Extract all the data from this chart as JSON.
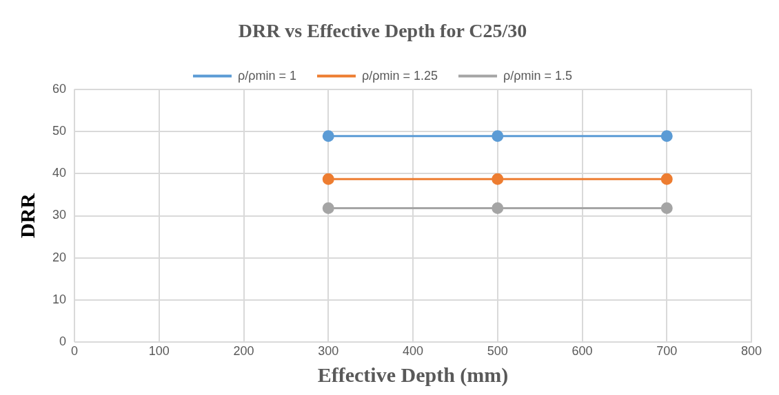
{
  "chart_data": {
    "type": "line",
    "title": "DRR vs Effective Depth for C25/30",
    "xlabel": "Effective Depth (mm)",
    "ylabel": "DRR",
    "x": [
      300,
      500,
      700
    ],
    "series": [
      {
        "name": "ρ/ρmin = 1",
        "color": "#5b9bd5",
        "values": [
          48.9,
          48.9,
          48.9
        ]
      },
      {
        "name": "ρ/ρmin = 1.25",
        "color": "#ed7d31",
        "values": [
          38.7,
          38.7,
          38.7
        ]
      },
      {
        "name": "ρ/ρmin = 1.5",
        "color": "#a5a5a5",
        "values": [
          31.8,
          31.8,
          31.8
        ]
      }
    ],
    "xlim": [
      0,
      800
    ],
    "xticks": [
      0,
      100,
      200,
      300,
      400,
      500,
      600,
      700,
      800
    ],
    "ylim": [
      0,
      60
    ],
    "yticks": [
      0,
      10,
      20,
      30,
      40,
      50,
      60
    ],
    "grid": true,
    "legend": "top",
    "marker": "circle",
    "line_style": "solid"
  }
}
